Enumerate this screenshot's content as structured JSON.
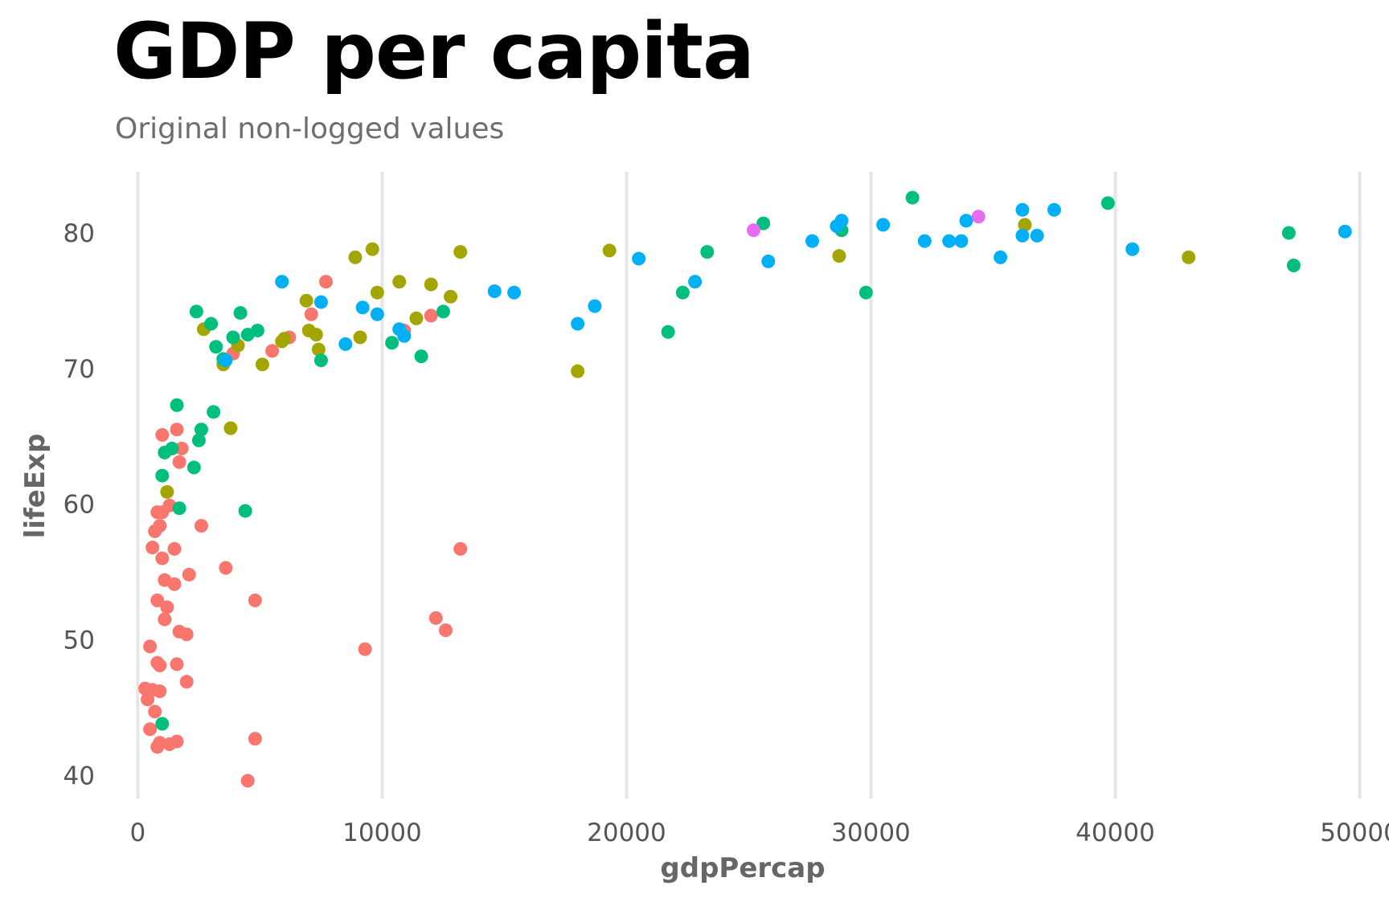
{
  "chart_data": {
    "type": "scatter",
    "title": "GDP per capita",
    "subtitle": "Original non-logged values",
    "xlabel": "gdpPercap",
    "ylabel": "lifeExp",
    "xlim": [
      -1000,
      51200
    ],
    "ylim": [
      38.3,
      84.5
    ],
    "x_ticks": [
      0,
      10000,
      20000,
      30000,
      40000,
      50000
    ],
    "x_tick_labels": [
      "0",
      "10000",
      "20000",
      "30000",
      "40000",
      "50000"
    ],
    "y_ticks": [
      40,
      50,
      60,
      70,
      80
    ],
    "y_tick_labels": [
      "40",
      "50",
      "60",
      "70",
      "80"
    ],
    "grid": {
      "vertical_major": true,
      "horizontal": false,
      "color": "#e5e5e5"
    },
    "legend": "none",
    "series": [
      {
        "color": "#F8766D",
        "points": [
          [
            7700,
            76.4
          ],
          [
            7100,
            74
          ],
          [
            13200,
            56.7
          ],
          [
            9300,
            49.3
          ],
          [
            12200,
            51.6
          ],
          [
            12600,
            50.7
          ],
          [
            4800,
            52.9
          ],
          [
            4800,
            42.7
          ],
          [
            4500,
            39.6
          ],
          [
            3600,
            55.3
          ],
          [
            2600,
            58.4
          ],
          [
            2100,
            54.8
          ],
          [
            2000,
            46.9
          ],
          [
            2000,
            50.4
          ],
          [
            1700,
            50.6
          ],
          [
            1600,
            48.2
          ],
          [
            1700,
            63.1
          ],
          [
            1800,
            64.1
          ],
          [
            1600,
            65.5
          ],
          [
            1000,
            65.1
          ],
          [
            1500,
            56.7
          ],
          [
            1500,
            54.1
          ],
          [
            1300,
            59.9
          ],
          [
            1000,
            59.4
          ],
          [
            800,
            59.4
          ],
          [
            900,
            58.4
          ],
          [
            700,
            58
          ],
          [
            600,
            56.8
          ],
          [
            1000,
            56
          ],
          [
            1100,
            54.4
          ],
          [
            1200,
            52.4
          ],
          [
            1100,
            51.5
          ],
          [
            800,
            52.9
          ],
          [
            500,
            49.5
          ],
          [
            800,
            48.3
          ],
          [
            900,
            48.1
          ],
          [
            300,
            46.4
          ],
          [
            400,
            45.6
          ],
          [
            600,
            46.3
          ],
          [
            900,
            46.2
          ],
          [
            700,
            44.7
          ],
          [
            500,
            43.4
          ],
          [
            900,
            42.4
          ],
          [
            800,
            42.1
          ],
          [
            1300,
            42.3
          ],
          [
            1600,
            42.5
          ],
          [
            6200,
            72.3
          ],
          [
            5500,
            71.3
          ],
          [
            3900,
            71.1
          ],
          [
            10900,
            72.8
          ],
          [
            12000,
            73.9
          ]
        ]
      },
      {
        "color": "#A3A500",
        "points": [
          [
            9600,
            78.8
          ],
          [
            8900,
            78.2
          ],
          [
            13200,
            78.6
          ],
          [
            10700,
            76.4
          ],
          [
            9800,
            75.6
          ],
          [
            12000,
            76.2
          ],
          [
            12800,
            75.3
          ],
          [
            11400,
            73.7
          ],
          [
            6900,
            75
          ],
          [
            7000,
            72.8
          ],
          [
            7300,
            72.5
          ],
          [
            7400,
            71.4
          ],
          [
            5900,
            72
          ],
          [
            6000,
            72.2
          ],
          [
            9100,
            72.3
          ],
          [
            5100,
            70.3
          ],
          [
            4100,
            71.7
          ],
          [
            3500,
            70.3
          ],
          [
            2700,
            72.9
          ],
          [
            3800,
            65.6
          ],
          [
            1200,
            60.9
          ],
          [
            18000,
            69.8
          ],
          [
            19300,
            78.7
          ],
          [
            28700,
            78.3
          ],
          [
            36300,
            80.6
          ],
          [
            43000,
            78.2
          ]
        ]
      },
      {
        "color": "#00BF7D",
        "points": [
          [
            2400,
            74.2
          ],
          [
            3000,
            73.3
          ],
          [
            3200,
            71.6
          ],
          [
            3500,
            70.7
          ],
          [
            3900,
            72.3
          ],
          [
            4200,
            74.1
          ],
          [
            4500,
            72.5
          ],
          [
            4900,
            72.8
          ],
          [
            7500,
            70.6
          ],
          [
            10400,
            71.9
          ],
          [
            11600,
            70.9
          ],
          [
            12500,
            74.2
          ],
          [
            3100,
            66.8
          ],
          [
            2600,
            65.5
          ],
          [
            2500,
            64.7
          ],
          [
            2300,
            62.7
          ],
          [
            1600,
            67.3
          ],
          [
            1400,
            64.1
          ],
          [
            1100,
            63.8
          ],
          [
            1000,
            62.1
          ],
          [
            1700,
            59.7
          ],
          [
            4400,
            59.5
          ],
          [
            1000,
            43.8
          ],
          [
            21700,
            72.7
          ],
          [
            22300,
            75.6
          ],
          [
            23300,
            78.6
          ],
          [
            25600,
            80.7
          ],
          [
            28800,
            80.2
          ],
          [
            29800,
            75.6
          ],
          [
            31700,
            82.6
          ],
          [
            39700,
            82.2
          ],
          [
            47100,
            80
          ],
          [
            47300,
            77.6
          ]
        ]
      },
      {
        "color": "#00B0F6",
        "points": [
          [
            5900,
            76.4
          ],
          [
            7500,
            74.9
          ],
          [
            9200,
            74.5
          ],
          [
            9800,
            74
          ],
          [
            8500,
            71.8
          ],
          [
            10700,
            72.9
          ],
          [
            10900,
            72.4
          ],
          [
            3600,
            70.6
          ],
          [
            14600,
            75.7
          ],
          [
            15400,
            75.6
          ],
          [
            18000,
            73.3
          ],
          [
            18700,
            74.6
          ],
          [
            20500,
            78.1
          ],
          [
            22800,
            76.4
          ],
          [
            25800,
            77.9
          ],
          [
            27600,
            79.4
          ],
          [
            28600,
            80.5
          ],
          [
            28800,
            80.9
          ],
          [
            30500,
            80.6
          ],
          [
            32200,
            79.4
          ],
          [
            33200,
            79.4
          ],
          [
            33700,
            79.4
          ],
          [
            33900,
            80.9
          ],
          [
            35300,
            78.2
          ],
          [
            36200,
            79.8
          ],
          [
            36200,
            81.7
          ],
          [
            36800,
            79.8
          ],
          [
            37500,
            81.7
          ],
          [
            40700,
            78.8
          ],
          [
            49400,
            80.1
          ]
        ]
      },
      {
        "color": "#E76BF3",
        "points": [
          [
            25200,
            80.2
          ],
          [
            34400,
            81.2
          ]
        ]
      }
    ]
  }
}
